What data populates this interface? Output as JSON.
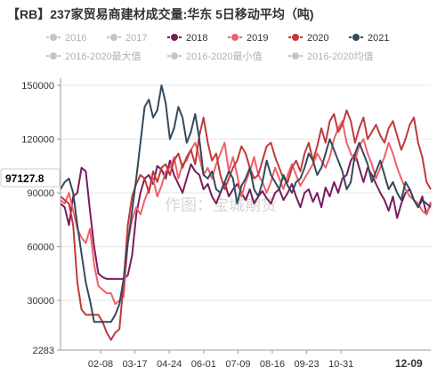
{
  "colors": {
    "legend_off": "#c4c4c4",
    "series_2018": "#7a1b5e",
    "series_2019": "#f0606a",
    "series_2020": "#c0393b",
    "series_2021": "#334a5c",
    "grid": "#e5e5e5",
    "axis": "#999999"
  },
  "watermark": "作图：宝城期货",
  "chart_data": {
    "type": "line",
    "title": "【RB】237家贸易商建材成交量:华东 5日移动平均（吨)",
    "ylim": [
      2283,
      150000
    ],
    "y_ticks": [
      {
        "value": 150000,
        "label": "150000"
      },
      {
        "value": 120000,
        "label": "120000"
      },
      {
        "value": 90000,
        "label": "90000"
      },
      {
        "value": 60000,
        "label": "60000"
      },
      {
        "value": 30000,
        "label": "30000"
      },
      {
        "value": 2283,
        "label": "2283"
      }
    ],
    "x_ticks": [
      "02-08",
      "03-17",
      "04-24",
      "06-01",
      "07-09",
      "08-16",
      "09-23",
      "10-31"
    ],
    "x_last_label": "12-09",
    "current_value_label": "97127.8",
    "grid": true,
    "legend": [
      {
        "name": "2016",
        "active": false
      },
      {
        "name": "2017",
        "active": false
      },
      {
        "name": "2018",
        "active": true
      },
      {
        "name": "2019",
        "active": true
      },
      {
        "name": "2020",
        "active": true
      },
      {
        "name": "2021",
        "active": true
      },
      {
        "name": "2016-2020最大值",
        "active": false
      },
      {
        "name": "2016-2020最小值",
        "active": false
      },
      {
        "name": "2016-2020均值",
        "active": false
      }
    ],
    "series": [
      {
        "name": "2018",
        "values": [
          84000,
          82000,
          72000,
          88000,
          90000,
          104000,
          102000,
          80000,
          60000,
          45000,
          43000,
          42000,
          42000,
          42000,
          42000,
          42000,
          44000,
          55000,
          78000,
          90000,
          98000,
          100000,
          95000,
          105000,
          103000,
          98000,
          108000,
          100000,
          95000,
          90000,
          98000,
          106000,
          102000,
          100000,
          92000,
          95000,
          88000,
          84000,
          90000,
          96000,
          88000,
          92000,
          95000,
          90000,
          86000,
          92000,
          84000,
          88000,
          91000,
          87000,
          84000,
          90000,
          92000,
          86000,
          90000,
          95000,
          88000,
          82000,
          90000,
          92000,
          85000,
          90000,
          82000,
          93000,
          88000,
          96000,
          90000,
          98000,
          100000,
          108000,
          112000,
          104000,
          96000,
          104000,
          100000,
          95000,
          90000,
          86000,
          80000,
          88000,
          76000,
          84000,
          90000,
          92000,
          86000,
          82000,
          88000,
          78000,
          84000
        ]
      },
      {
        "name": "2019",
        "values": [
          86000,
          84000,
          90000,
          80000,
          70000,
          65000,
          62000,
          70000,
          50000,
          38000,
          36000,
          34000,
          34000,
          28000,
          30000,
          32000,
          62000,
          75000,
          82000,
          78000,
          86000,
          92000,
          98000,
          88000,
          94000,
          102000,
          104000,
          110000,
          98000,
          106000,
          108000,
          114000,
          118000,
          110000,
          100000,
          104000,
          98000,
          106000,
          112000,
          118000,
          102000,
          110000,
          100000,
          88000,
          96000,
          102000,
          110000,
          100000,
          96000,
          90000,
          96000,
          104000,
          98000,
          92000,
          100000,
          106000,
          100000,
          94000,
          98000,
          102000,
          106000,
          112000,
          108000,
          104000,
          110000,
          120000,
          126000,
          130000,
          118000,
          112000,
          108000,
          116000,
          120000,
          112000,
          106000,
          98000,
          104000,
          110000,
          118000,
          112000,
          104000,
          98000,
          92000,
          88000,
          86000,
          84000,
          80000,
          78000,
          85000
        ]
      },
      {
        "name": "2020",
        "values": [
          88000,
          86000,
          84000,
          72000,
          40000,
          25000,
          22000,
          22000,
          22000,
          22000,
          18000,
          12000,
          8000,
          12000,
          14000,
          40000,
          72000,
          88000,
          95000,
          100000,
          98000,
          90000,
          102000,
          96000,
          104000,
          106000,
          100000,
          108000,
          112000,
          104000,
          110000,
          114000,
          106000,
          122000,
          132000,
          118000,
          108000,
          112000,
          100000,
          92000,
          98000,
          104000,
          108000,
          116000,
          112000,
          104000,
          98000,
          100000,
          108000,
          116000,
          118000,
          110000,
          104000,
          98000,
          96000,
          104000,
          108000,
          102000,
          112000,
          118000,
          108000,
          116000,
          126000,
          118000,
          130000,
          134000,
          124000,
          128000,
          136000,
          130000,
          118000,
          126000,
          132000,
          120000,
          124000,
          128000,
          122000,
          118000,
          126000,
          130000,
          122000,
          114000,
          120000,
          128000,
          132000,
          118000,
          110000,
          96000,
          92000
        ]
      },
      {
        "name": "2021",
        "values": [
          92000,
          96000,
          98000,
          90000,
          72000,
          56000,
          40000,
          30000,
          18000,
          18000,
          18000,
          18000,
          18000,
          22000,
          28000,
          42000,
          62000,
          80000,
          98000,
          118000,
          138000,
          142000,
          132000,
          136000,
          150000,
          140000,
          120000,
          126000,
          138000,
          132000,
          118000,
          124000,
          134000,
          120000,
          100000,
          98000,
          102000,
          92000,
          90000,
          96000,
          102000,
          98000,
          84000,
          94000,
          98000,
          104000,
          92000,
          88000,
          96000,
          108000,
          100000,
          96000,
          92000,
          100000,
          94000,
          90000,
          96000,
          98000,
          104000,
          112000,
          108000,
          100000,
          104000,
          112000,
          120000,
          114000,
          108000,
          102000,
          92000,
          96000,
          112000,
          118000,
          112000,
          106000,
          96000,
          102000,
          108000,
          100000,
          92000,
          96000,
          90000,
          86000,
          96000,
          92000,
          86000,
          82000,
          86000,
          84000,
          82000
        ]
      }
    ]
  }
}
